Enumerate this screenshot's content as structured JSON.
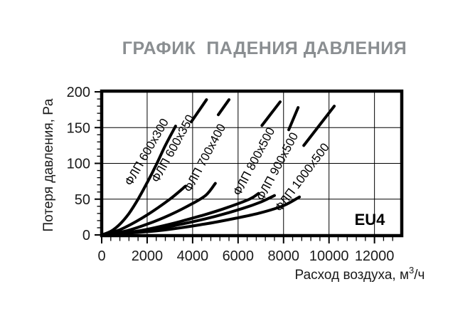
{
  "chart": {
    "title": "ГРАФИК  ПАДЕНИЯ ДАВЛЕНИЯ"
  },
  "chart_data": {
    "type": "line",
    "title": "ГРАФИК  ПАДЕНИЯ ДАВЛЕНИЯ",
    "title_color": "#8a8e91",
    "line_color": "#000000",
    "xlabel": "Расход воздуха, м3/ч",
    "xlabel_parts": {
      "base": "Расход воздуха, м",
      "sup": "3",
      "rest": "/ч"
    },
    "ylabel": "Потеря давления, Pa",
    "annotation": "EU4",
    "xlim": [
      0,
      13200
    ],
    "ylim": [
      0,
      200
    ],
    "grid": true,
    "x_major_ticks": [
      0,
      2000,
      4000,
      6000,
      8000,
      10000,
      12000
    ],
    "x_tick_labels": [
      "0",
      "2000",
      "4000",
      "6000",
      "8000",
      "10000",
      "12000"
    ],
    "x_minor_step": 400,
    "y_major_ticks": [
      0,
      50,
      100,
      150,
      200
    ],
    "y_tick_labels": [
      "0",
      "50",
      "100",
      "150",
      "200"
    ],
    "y_minor_step": 10,
    "y_gridlines": [
      50,
      100,
      150
    ],
    "series": [
      {
        "name": "ФЛП 600x300",
        "points": [
          [
            0,
            0
          ],
          [
            400,
            5
          ],
          [
            800,
            15
          ],
          [
            1200,
            30
          ],
          [
            1600,
            50
          ],
          [
            2000,
            73
          ],
          [
            2400,
            98
          ],
          [
            2800,
            125
          ],
          [
            3250,
            152
          ]
        ],
        "tail": null,
        "label": {
          "v": 2130,
          "p": 113,
          "angle": -60
        }
      },
      {
        "name": "ФЛП 600x350",
        "points": [
          [
            0,
            0
          ],
          [
            500,
            4
          ],
          [
            1000,
            10
          ],
          [
            2000,
            28
          ],
          [
            3000,
            50
          ],
          [
            3680,
            68
          ]
        ],
        "tail": [
          [
            3940,
            158
          ],
          [
            4610,
            189
          ]
        ],
        "label": {
          "v": 3280,
          "p": 118,
          "angle": -61
        }
      },
      {
        "name": "ФЛП 700x400",
        "points": [
          [
            0,
            0
          ],
          [
            1000,
            5
          ],
          [
            2000,
            15
          ],
          [
            3000,
            28
          ],
          [
            4000,
            44
          ],
          [
            4600,
            56
          ],
          [
            5000,
            72
          ]
        ],
        "tail": [
          [
            5130,
            168
          ],
          [
            5600,
            189
          ]
        ],
        "label": {
          "v": 4690,
          "p": 105,
          "angle": -62
        }
      },
      {
        "name": "ФЛП 800x500",
        "points": [
          [
            0,
            0
          ],
          [
            1500,
            5
          ],
          [
            3000,
            15
          ],
          [
            4500,
            28
          ],
          [
            5500,
            38
          ],
          [
            6500,
            50
          ],
          [
            6900,
            58
          ]
        ],
        "tail": [
          [
            7050,
            153
          ],
          [
            7850,
            186
          ]
        ],
        "label": {
          "v": 6850,
          "p": 100,
          "angle": -62
        }
      },
      {
        "name": "ФЛП 900x500",
        "points": [
          [
            0,
            0
          ],
          [
            2000,
            6
          ],
          [
            3500,
            15
          ],
          [
            5000,
            26
          ],
          [
            6200,
            37
          ],
          [
            7000,
            46
          ],
          [
            7600,
            55
          ]
        ],
        "tail": [
          [
            8230,
            147
          ],
          [
            8640,
            178
          ]
        ],
        "label": {
          "v": 7880,
          "p": 93,
          "angle": -62
        }
      },
      {
        "name": "ФЛП 1000x500",
        "points": [
          [
            0,
            0
          ],
          [
            2500,
            6
          ],
          [
            4500,
            15
          ],
          [
            6000,
            24
          ],
          [
            7000,
            31
          ],
          [
            8000,
            41
          ],
          [
            8700,
            53
          ]
        ],
        "tail": [
          [
            8890,
            125
          ],
          [
            10230,
            180
          ]
        ],
        "label": {
          "v": 8950,
          "p": 77,
          "angle": -53
        }
      }
    ]
  }
}
